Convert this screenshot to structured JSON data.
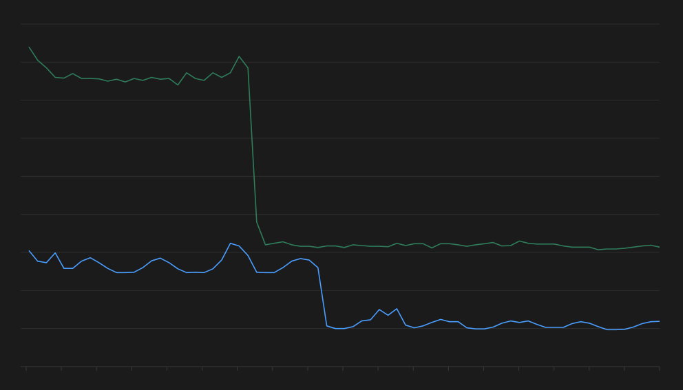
{
  "colors": {
    "background": "#1b1b1b",
    "grid": "#2e2e2e",
    "axis": "#3a3a3a",
    "series_green": "#2e7d5b",
    "series_blue": "#4a9eff"
  },
  "chart_data": {
    "type": "line",
    "grid": true,
    "legend": "none",
    "xlim": [
      0,
      72
    ],
    "ylim": [
      0,
      9
    ],
    "x_tick_values": [
      0,
      4,
      8,
      12,
      16,
      20,
      24,
      28,
      32,
      36,
      40,
      44,
      48,
      52,
      56,
      60,
      64,
      68,
      72
    ],
    "y_grid_values": [
      0,
      1,
      2,
      3,
      4,
      5,
      6,
      7,
      8,
      9
    ],
    "series": [
      {
        "color": "#2e7d5b",
        "values": [
          8.4,
          8.05,
          7.85,
          7.6,
          7.58,
          7.7,
          7.57,
          7.57,
          7.56,
          7.5,
          7.55,
          7.48,
          7.57,
          7.52,
          7.6,
          7.55,
          7.57,
          7.4,
          7.72,
          7.57,
          7.52,
          7.72,
          7.6,
          7.72,
          8.15,
          7.85,
          3.8,
          3.2,
          3.24,
          3.28,
          3.2,
          3.16,
          3.16,
          3.13,
          3.17,
          3.17,
          3.13,
          3.2,
          3.18,
          3.16,
          3.16,
          3.15,
          3.24,
          3.18,
          3.23,
          3.23,
          3.12,
          3.23,
          3.23,
          3.2,
          3.16,
          3.2,
          3.23,
          3.26,
          3.17,
          3.18,
          3.3,
          3.24,
          3.22,
          3.22,
          3.22,
          3.17,
          3.14,
          3.14,
          3.14,
          3.07,
          3.09,
          3.09,
          3.11,
          3.14,
          3.17,
          3.19,
          3.14
        ]
      },
      {
        "color": "#4a9eff",
        "values": [
          3.05,
          2.77,
          2.73,
          2.99,
          2.58,
          2.58,
          2.77,
          2.86,
          2.73,
          2.58,
          2.47,
          2.47,
          2.48,
          2.6,
          2.78,
          2.85,
          2.73,
          2.57,
          2.47,
          2.48,
          2.47,
          2.57,
          2.8,
          3.24,
          3.17,
          2.92,
          2.48,
          2.47,
          2.47,
          2.6,
          2.77,
          2.84,
          2.8,
          2.6,
          1.07,
          1.0,
          1.0,
          1.05,
          1.2,
          1.23,
          1.5,
          1.35,
          1.52,
          1.09,
          1.02,
          1.07,
          1.16,
          1.24,
          1.18,
          1.18,
          1.02,
          0.99,
          0.99,
          1.04,
          1.14,
          1.2,
          1.16,
          1.2,
          1.11,
          1.03,
          1.03,
          1.03,
          1.13,
          1.18,
          1.14,
          1.05,
          0.97,
          0.97,
          0.98,
          1.04,
          1.13,
          1.18,
          1.19
        ]
      }
    ]
  }
}
